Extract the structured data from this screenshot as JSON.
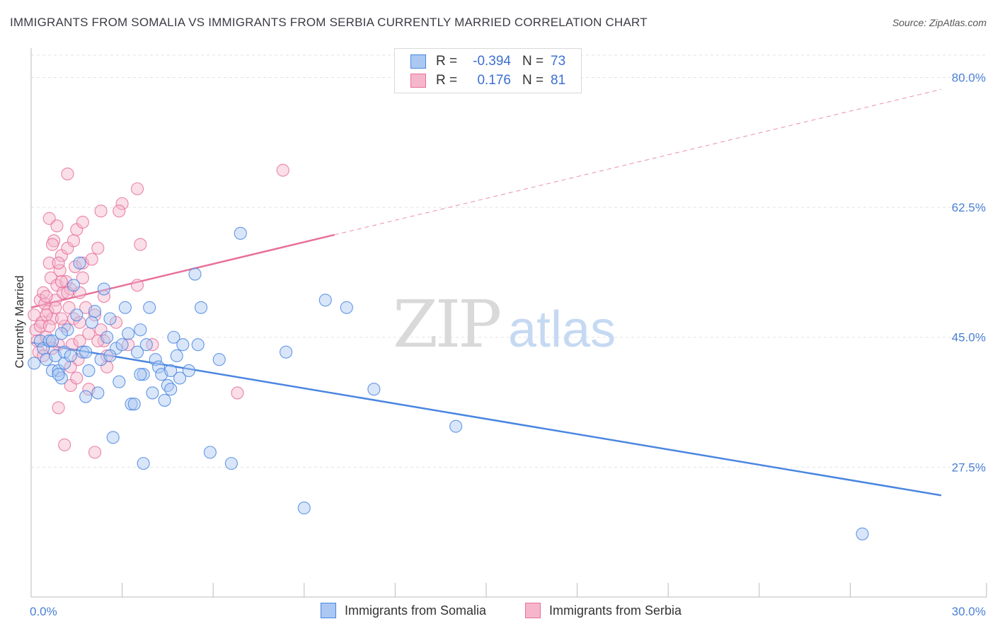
{
  "title": "IMMIGRANTS FROM SOMALIA VS IMMIGRANTS FROM SERBIA CURRENTLY MARRIED CORRELATION CHART",
  "source": "Source: ZipAtlas.com",
  "watermark": {
    "zip": "ZIP",
    "atlas": "atlas"
  },
  "colors": {
    "somalia": "#4a86e0",
    "somalia_fill": "#aac8f2",
    "serbia": "#e8709a",
    "serbia_fill": "#f5b6cb",
    "axis_text": "#4a7fd4"
  },
  "legend": {
    "rows": [
      {
        "r_label": "R =",
        "r_value": "-0.394",
        "n_label": "N =",
        "n_value": "73"
      },
      {
        "r_label": "R =",
        "r_value": "0.176",
        "n_label": "N =",
        "n_value": "81"
      }
    ]
  },
  "bottom_legend": {
    "somalia": "Immigrants from Somalia",
    "serbia": "Immigrants from Serbia"
  },
  "chart_data": {
    "type": "scatter",
    "title": "IMMIGRANTS FROM SOMALIA VS IMMIGRANTS FROM SERBIA CURRENTLY MARRIED CORRELATION CHART",
    "xlabel": "",
    "ylabel": "Currently Married",
    "xlim": [
      0,
      30
    ],
    "ylim": [
      10,
      83
    ],
    "x_tick_labels": [
      "0.0%",
      "30.0%"
    ],
    "y_ticks": [
      27.5,
      45.0,
      62.5,
      80.0
    ],
    "y_tick_labels": [
      "27.5%",
      "45.0%",
      "62.5%",
      "80.0%"
    ],
    "grid": true,
    "legend_position": "top-center",
    "series": [
      {
        "name": "Immigrants from Somalia",
        "color": "#4a86e0",
        "points": [
          [
            0.1,
            41.5
          ],
          [
            0.3,
            44.5
          ],
          [
            0.4,
            43.5
          ],
          [
            0.5,
            42
          ],
          [
            0.6,
            44.5
          ],
          [
            0.7,
            40.5
          ],
          [
            0.8,
            42.5
          ],
          [
            0.9,
            40.5
          ],
          [
            1.0,
            39.5
          ],
          [
            1.1,
            41.5
          ],
          [
            1.2,
            46
          ],
          [
            1.4,
            52
          ],
          [
            1.5,
            48
          ],
          [
            1.6,
            55
          ],
          [
            1.7,
            43
          ],
          [
            1.8,
            43
          ],
          [
            1.9,
            40.5
          ],
          [
            2.0,
            47
          ],
          [
            2.1,
            48.5
          ],
          [
            2.2,
            37.5
          ],
          [
            2.3,
            42
          ],
          [
            2.4,
            51.5
          ],
          [
            2.5,
            45
          ],
          [
            2.6,
            47.5
          ],
          [
            2.7,
            31.5
          ],
          [
            2.8,
            43.5
          ],
          [
            3.0,
            44
          ],
          [
            3.1,
            49
          ],
          [
            3.2,
            45.5
          ],
          [
            3.3,
            36
          ],
          [
            3.4,
            36
          ],
          [
            3.5,
            43
          ],
          [
            3.6,
            46
          ],
          [
            3.7,
            40
          ],
          [
            3.8,
            44
          ],
          [
            3.9,
            49
          ],
          [
            4.0,
            37.5
          ],
          [
            4.1,
            42
          ],
          [
            4.2,
            41
          ],
          [
            4.3,
            40
          ],
          [
            4.5,
            38.5
          ],
          [
            4.6,
            38
          ],
          [
            4.7,
            45
          ],
          [
            4.8,
            42.5
          ],
          [
            4.9,
            39.5
          ],
          [
            5.0,
            44
          ],
          [
            5.2,
            40.5
          ],
          [
            5.4,
            53.5
          ],
          [
            5.5,
            44
          ],
          [
            5.6,
            49
          ],
          [
            5.9,
            29.5
          ],
          [
            6.2,
            42
          ],
          [
            6.6,
            28
          ],
          [
            6.9,
            59
          ],
          [
            8.4,
            43
          ],
          [
            9.0,
            22
          ],
          [
            9.7,
            50
          ],
          [
            10.4,
            49
          ],
          [
            11.3,
            38
          ],
          [
            14.0,
            33
          ],
          [
            27.4,
            18.5
          ],
          [
            0.9,
            40
          ],
          [
            1.1,
            43
          ],
          [
            3.7,
            28
          ],
          [
            2.9,
            39
          ],
          [
            1.3,
            42.5
          ],
          [
            4.4,
            36.5
          ],
          [
            3.6,
            40
          ],
          [
            0.7,
            44.5
          ],
          [
            1.0,
            45.5
          ],
          [
            2.6,
            42.5
          ],
          [
            1.8,
            37
          ],
          [
            4.6,
            40.5
          ]
        ]
      },
      {
        "name": "Immigrants from Serbia",
        "color": "#e8709a",
        "points": [
          [
            0.1,
            48
          ],
          [
            0.15,
            46
          ],
          [
            0.2,
            44.5
          ],
          [
            0.25,
            43
          ],
          [
            0.3,
            50
          ],
          [
            0.35,
            47
          ],
          [
            0.4,
            51
          ],
          [
            0.45,
            49.5
          ],
          [
            0.5,
            45
          ],
          [
            0.55,
            48.5
          ],
          [
            0.6,
            55
          ],
          [
            0.65,
            53
          ],
          [
            0.7,
            47.5
          ],
          [
            0.75,
            58
          ],
          [
            0.8,
            50
          ],
          [
            0.85,
            52
          ],
          [
            0.9,
            44
          ],
          [
            0.95,
            54
          ],
          [
            1.0,
            56
          ],
          [
            1.05,
            51
          ],
          [
            1.1,
            46.5
          ],
          [
            1.15,
            52.5
          ],
          [
            1.2,
            57
          ],
          [
            1.25,
            49
          ],
          [
            1.3,
            51.5
          ],
          [
            1.35,
            44
          ],
          [
            1.4,
            47.5
          ],
          [
            1.45,
            54.5
          ],
          [
            1.5,
            59.5
          ],
          [
            1.55,
            42
          ],
          [
            1.6,
            51
          ],
          [
            1.7,
            55
          ],
          [
            1.8,
            49
          ],
          [
            1.9,
            45.5
          ],
          [
            2.0,
            55.5
          ],
          [
            2.1,
            48
          ],
          [
            2.2,
            57
          ],
          [
            2.3,
            46
          ],
          [
            2.4,
            44.5
          ],
          [
            2.5,
            42.5
          ],
          [
            0.6,
            61
          ],
          [
            0.7,
            57.5
          ],
          [
            0.85,
            60
          ],
          [
            1.2,
            67
          ],
          [
            1.7,
            60.5
          ],
          [
            2.3,
            62
          ],
          [
            3.0,
            63
          ],
          [
            3.5,
            65
          ],
          [
            3.6,
            57.5
          ],
          [
            3.5,
            52
          ],
          [
            0.9,
            35.5
          ],
          [
            1.1,
            30.5
          ],
          [
            2.1,
            29.5
          ],
          [
            1.3,
            38.5
          ],
          [
            1.9,
            38
          ],
          [
            6.8,
            37.5
          ],
          [
            8.3,
            67.5
          ],
          [
            4.0,
            44
          ],
          [
            2.9,
            62
          ],
          [
            1.6,
            44.5
          ],
          [
            0.3,
            46.5
          ],
          [
            0.4,
            42.5
          ],
          [
            0.5,
            48
          ],
          [
            0.6,
            46.5
          ],
          [
            0.8,
            49
          ],
          [
            1.0,
            52.5
          ],
          [
            1.2,
            51
          ],
          [
            1.4,
            58
          ],
          [
            1.5,
            39.5
          ],
          [
            1.7,
            53
          ],
          [
            2.2,
            44.5
          ],
          [
            2.5,
            41
          ],
          [
            2.8,
            47
          ],
          [
            3.2,
            44
          ],
          [
            1.0,
            47.5
          ],
          [
            0.7,
            43.5
          ],
          [
            0.5,
            50.5
          ],
          [
            1.6,
            47
          ],
          [
            0.9,
            55
          ],
          [
            2.4,
            50.5
          ],
          [
            1.3,
            41
          ]
        ]
      }
    ],
    "trend_lines": [
      {
        "series": "Immigrants from Somalia",
        "x": [
          0,
          30
        ],
        "y": [
          44.3,
          23.7
        ],
        "style": "solid"
      },
      {
        "series": "Immigrants from Serbia",
        "x": [
          0,
          10
        ],
        "y": [
          49.0,
          58.8
        ],
        "style": "solid"
      },
      {
        "series": "Immigrants from Serbia",
        "x": [
          10,
          30
        ],
        "y": [
          58.8,
          78.4
        ],
        "style": "dashed"
      }
    ]
  }
}
